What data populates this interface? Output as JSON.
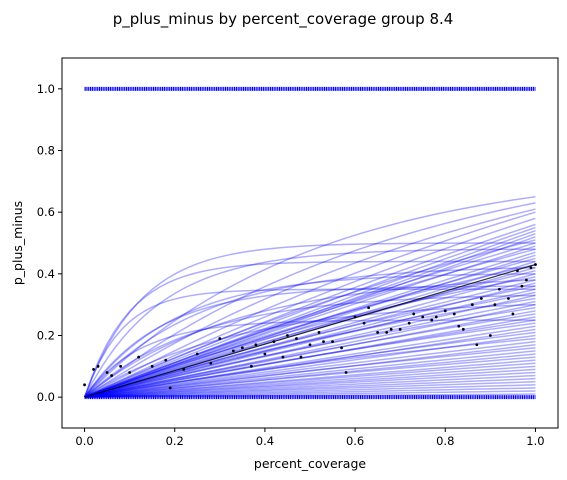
{
  "chart_data": {
    "type": "line",
    "title": "p_plus_minus by percent_coverage group 8.4",
    "xlabel": "percent_coverage",
    "ylabel": "p_plus_minus",
    "xlim": [
      -0.05,
      1.05
    ],
    "ylim": [
      -0.1,
      1.1
    ],
    "x_ticks": [
      0.0,
      0.2,
      0.4,
      0.6,
      0.8,
      1.0
    ],
    "x_tick_labels": [
      "0.0",
      "0.2",
      "0.4",
      "0.6",
      "0.8",
      "1.0"
    ],
    "y_ticks": [
      0.0,
      0.2,
      0.4,
      0.6,
      0.8,
      1.0
    ],
    "y_tick_labels": [
      "0.0",
      "0.2",
      "0.4",
      "0.6",
      "0.8",
      "1.0"
    ],
    "grid": false,
    "colors": {
      "band_curves": "#0000ff",
      "mean_line": "#000000",
      "points": "#000000",
      "binary_markers": "#0000ff"
    },
    "band_curves": {
      "description_values": "fitted curves y = s * (1 - exp(-k x)) / (1 - exp(-k)) over x in [0, 1]",
      "curves": [
        {
          "s": 0.65,
          "k": 2.0
        },
        {
          "s": 0.63,
          "k": 1.4
        },
        {
          "s": 0.61,
          "k": 1.0
        },
        {
          "s": 0.6,
          "k": 0.6
        },
        {
          "s": 0.58,
          "k": 0.4
        },
        {
          "s": 0.56,
          "k": 0.3
        },
        {
          "s": 0.55,
          "k": 0.2
        },
        {
          "s": 0.54,
          "k": 0.1
        },
        {
          "s": 0.53,
          "k": 0.05
        },
        {
          "s": 0.52,
          "k": 0.02
        },
        {
          "s": 0.51,
          "k": 0.6
        },
        {
          "s": 0.5,
          "k": 8.0
        },
        {
          "s": 0.5,
          "k": 0.3
        },
        {
          "s": 0.49,
          "k": 0.15
        },
        {
          "s": 0.48,
          "k": 6.0
        },
        {
          "s": 0.48,
          "k": 0.4
        },
        {
          "s": 0.47,
          "k": 0.1
        },
        {
          "s": 0.46,
          "k": 0.05
        },
        {
          "s": 0.45,
          "k": 0.25
        },
        {
          "s": 0.44,
          "k": 10.0
        },
        {
          "s": 0.44,
          "k": 0.02
        },
        {
          "s": 0.43,
          "k": 0.5
        },
        {
          "s": 0.42,
          "k": 0.1
        },
        {
          "s": 0.41,
          "k": 0.3
        },
        {
          "s": 0.4,
          "k": 0.05
        },
        {
          "s": 0.39,
          "k": 0.7
        },
        {
          "s": 0.38,
          "k": 0.15
        },
        {
          "s": 0.37,
          "k": 0.02
        },
        {
          "s": 0.36,
          "k": 0.4
        },
        {
          "s": 0.35,
          "k": 12.0
        },
        {
          "s": 0.35,
          "k": 0.1
        },
        {
          "s": 0.34,
          "k": 0.3
        },
        {
          "s": 0.33,
          "k": 0.05
        },
        {
          "s": 0.32,
          "k": 0.6
        },
        {
          "s": 0.31,
          "k": 0.2
        },
        {
          "s": 0.3,
          "k": 0.02
        },
        {
          "s": 0.29,
          "k": 0.5
        },
        {
          "s": 0.28,
          "k": 0.1
        },
        {
          "s": 0.27,
          "k": 0.3
        },
        {
          "s": 0.26,
          "k": 0.05
        },
        {
          "s": 0.25,
          "k": 8.0
        },
        {
          "s": 0.25,
          "k": 0.2
        },
        {
          "s": 0.24,
          "k": 0.4
        },
        {
          "s": 0.23,
          "k": 0.1
        },
        {
          "s": 0.22,
          "k": 0.02
        },
        {
          "s": 0.21,
          "k": 0.3
        },
        {
          "s": 0.2,
          "k": 0.05
        },
        {
          "s": 0.19,
          "k": 0.6
        },
        {
          "s": 0.18,
          "k": 0.15
        },
        {
          "s": 0.17,
          "k": 0.02
        },
        {
          "s": 0.16,
          "k": 0.3
        },
        {
          "s": 0.15,
          "k": 0.1
        },
        {
          "s": 0.14,
          "k": 0.05
        },
        {
          "s": 0.13,
          "k": 0.2
        },
        {
          "s": 0.12,
          "k": 0.02
        },
        {
          "s": 0.11,
          "k": 0.1
        },
        {
          "s": 0.1,
          "k": 0.05
        },
        {
          "s": 0.09,
          "k": 0.02
        },
        {
          "s": 0.08,
          "k": 0.1
        },
        {
          "s": 0.07,
          "k": 0.05
        },
        {
          "s": 0.06,
          "k": 0.02
        },
        {
          "s": 0.05,
          "k": 0.1
        },
        {
          "s": 0.04,
          "k": 0.05
        },
        {
          "s": 0.03,
          "k": 0.02
        },
        {
          "s": 0.02,
          "k": 0.01
        },
        {
          "s": 0.01,
          "k": 0.01
        },
        {
          "s": 0.42,
          "k": 4.0
        },
        {
          "s": 0.4,
          "k": 5.0
        },
        {
          "s": 0.38,
          "k": 3.0
        },
        {
          "s": 0.36,
          "k": 6.0
        },
        {
          "s": 0.33,
          "k": 4.0
        },
        {
          "s": 0.3,
          "k": 3.0
        }
      ]
    },
    "mean_line": {
      "x": [
        0.0,
        1.0
      ],
      "y": [
        0.0,
        0.43
      ]
    },
    "points": {
      "x": [
        0.0,
        0.02,
        0.03,
        0.05,
        0.06,
        0.08,
        0.1,
        0.12,
        0.15,
        0.18,
        0.19,
        0.22,
        0.25,
        0.28,
        0.3,
        0.33,
        0.35,
        0.38,
        0.4,
        0.42,
        0.45,
        0.47,
        0.5,
        0.52,
        0.55,
        0.57,
        0.58,
        0.6,
        0.62,
        0.65,
        0.67,
        0.7,
        0.72,
        0.75,
        0.77,
        0.78,
        0.8,
        0.82,
        0.84,
        0.86,
        0.87,
        0.88,
        0.9,
        0.92,
        0.94,
        0.95,
        0.97,
        0.98,
        0.99,
        1.0,
        0.37,
        0.48,
        0.53,
        0.63,
        0.73,
        0.83,
        0.91,
        0.96,
        0.44,
        0.68
      ],
      "y": [
        0.04,
        0.09,
        0.1,
        0.08,
        0.07,
        0.1,
        0.08,
        0.13,
        0.1,
        0.12,
        0.03,
        0.09,
        0.14,
        0.11,
        0.19,
        0.15,
        0.16,
        0.17,
        0.14,
        0.18,
        0.2,
        0.19,
        0.17,
        0.21,
        0.18,
        0.16,
        0.08,
        0.26,
        0.24,
        0.21,
        0.21,
        0.22,
        0.24,
        0.26,
        0.25,
        0.26,
        0.28,
        0.27,
        0.22,
        0.3,
        0.17,
        0.32,
        0.2,
        0.35,
        0.32,
        0.27,
        0.36,
        0.38,
        0.42,
        0.43,
        0.1,
        0.13,
        0.18,
        0.29,
        0.27,
        0.23,
        0.3,
        0.41,
        0.13,
        0.22
      ]
    },
    "binary_markers": {
      "y_values": [
        0.0,
        1.0
      ],
      "x_min": 0.0,
      "x_max": 1.0
    }
  }
}
